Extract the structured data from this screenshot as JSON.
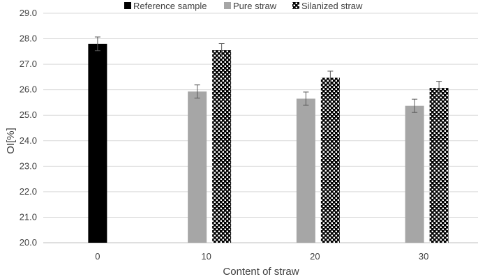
{
  "chart_data": {
    "type": "bar",
    "title": "",
    "xlabel": "Content of straw",
    "ylabel": "OI[%]",
    "ylim": [
      20.0,
      29.0
    ],
    "yticks": [
      "20.0",
      "21.0",
      "22.0",
      "23.0",
      "24.0",
      "25.0",
      "26.0",
      "27.0",
      "28.0",
      "29.0"
    ],
    "categories": [
      "0",
      "10",
      "20",
      "30"
    ],
    "legend_position": "top",
    "grid": "horizontal",
    "series": [
      {
        "name": "Reference sample",
        "color": "#000000",
        "pattern": "solid",
        "values": [
          27.8,
          null,
          null,
          null
        ],
        "errors": [
          0.27,
          null,
          null,
          null
        ]
      },
      {
        "name": "Pure straw",
        "color": "#a6a6a6",
        "pattern": "solid",
        "values": [
          null,
          25.93,
          25.65,
          25.37
        ],
        "errors": [
          null,
          0.26,
          0.26,
          0.26
        ]
      },
      {
        "name": "Silanized straw",
        "color": "#000000",
        "pattern": "checker",
        "values": [
          null,
          27.55,
          26.47,
          26.07
        ],
        "errors": [
          null,
          0.26,
          0.26,
          0.26
        ]
      }
    ]
  }
}
